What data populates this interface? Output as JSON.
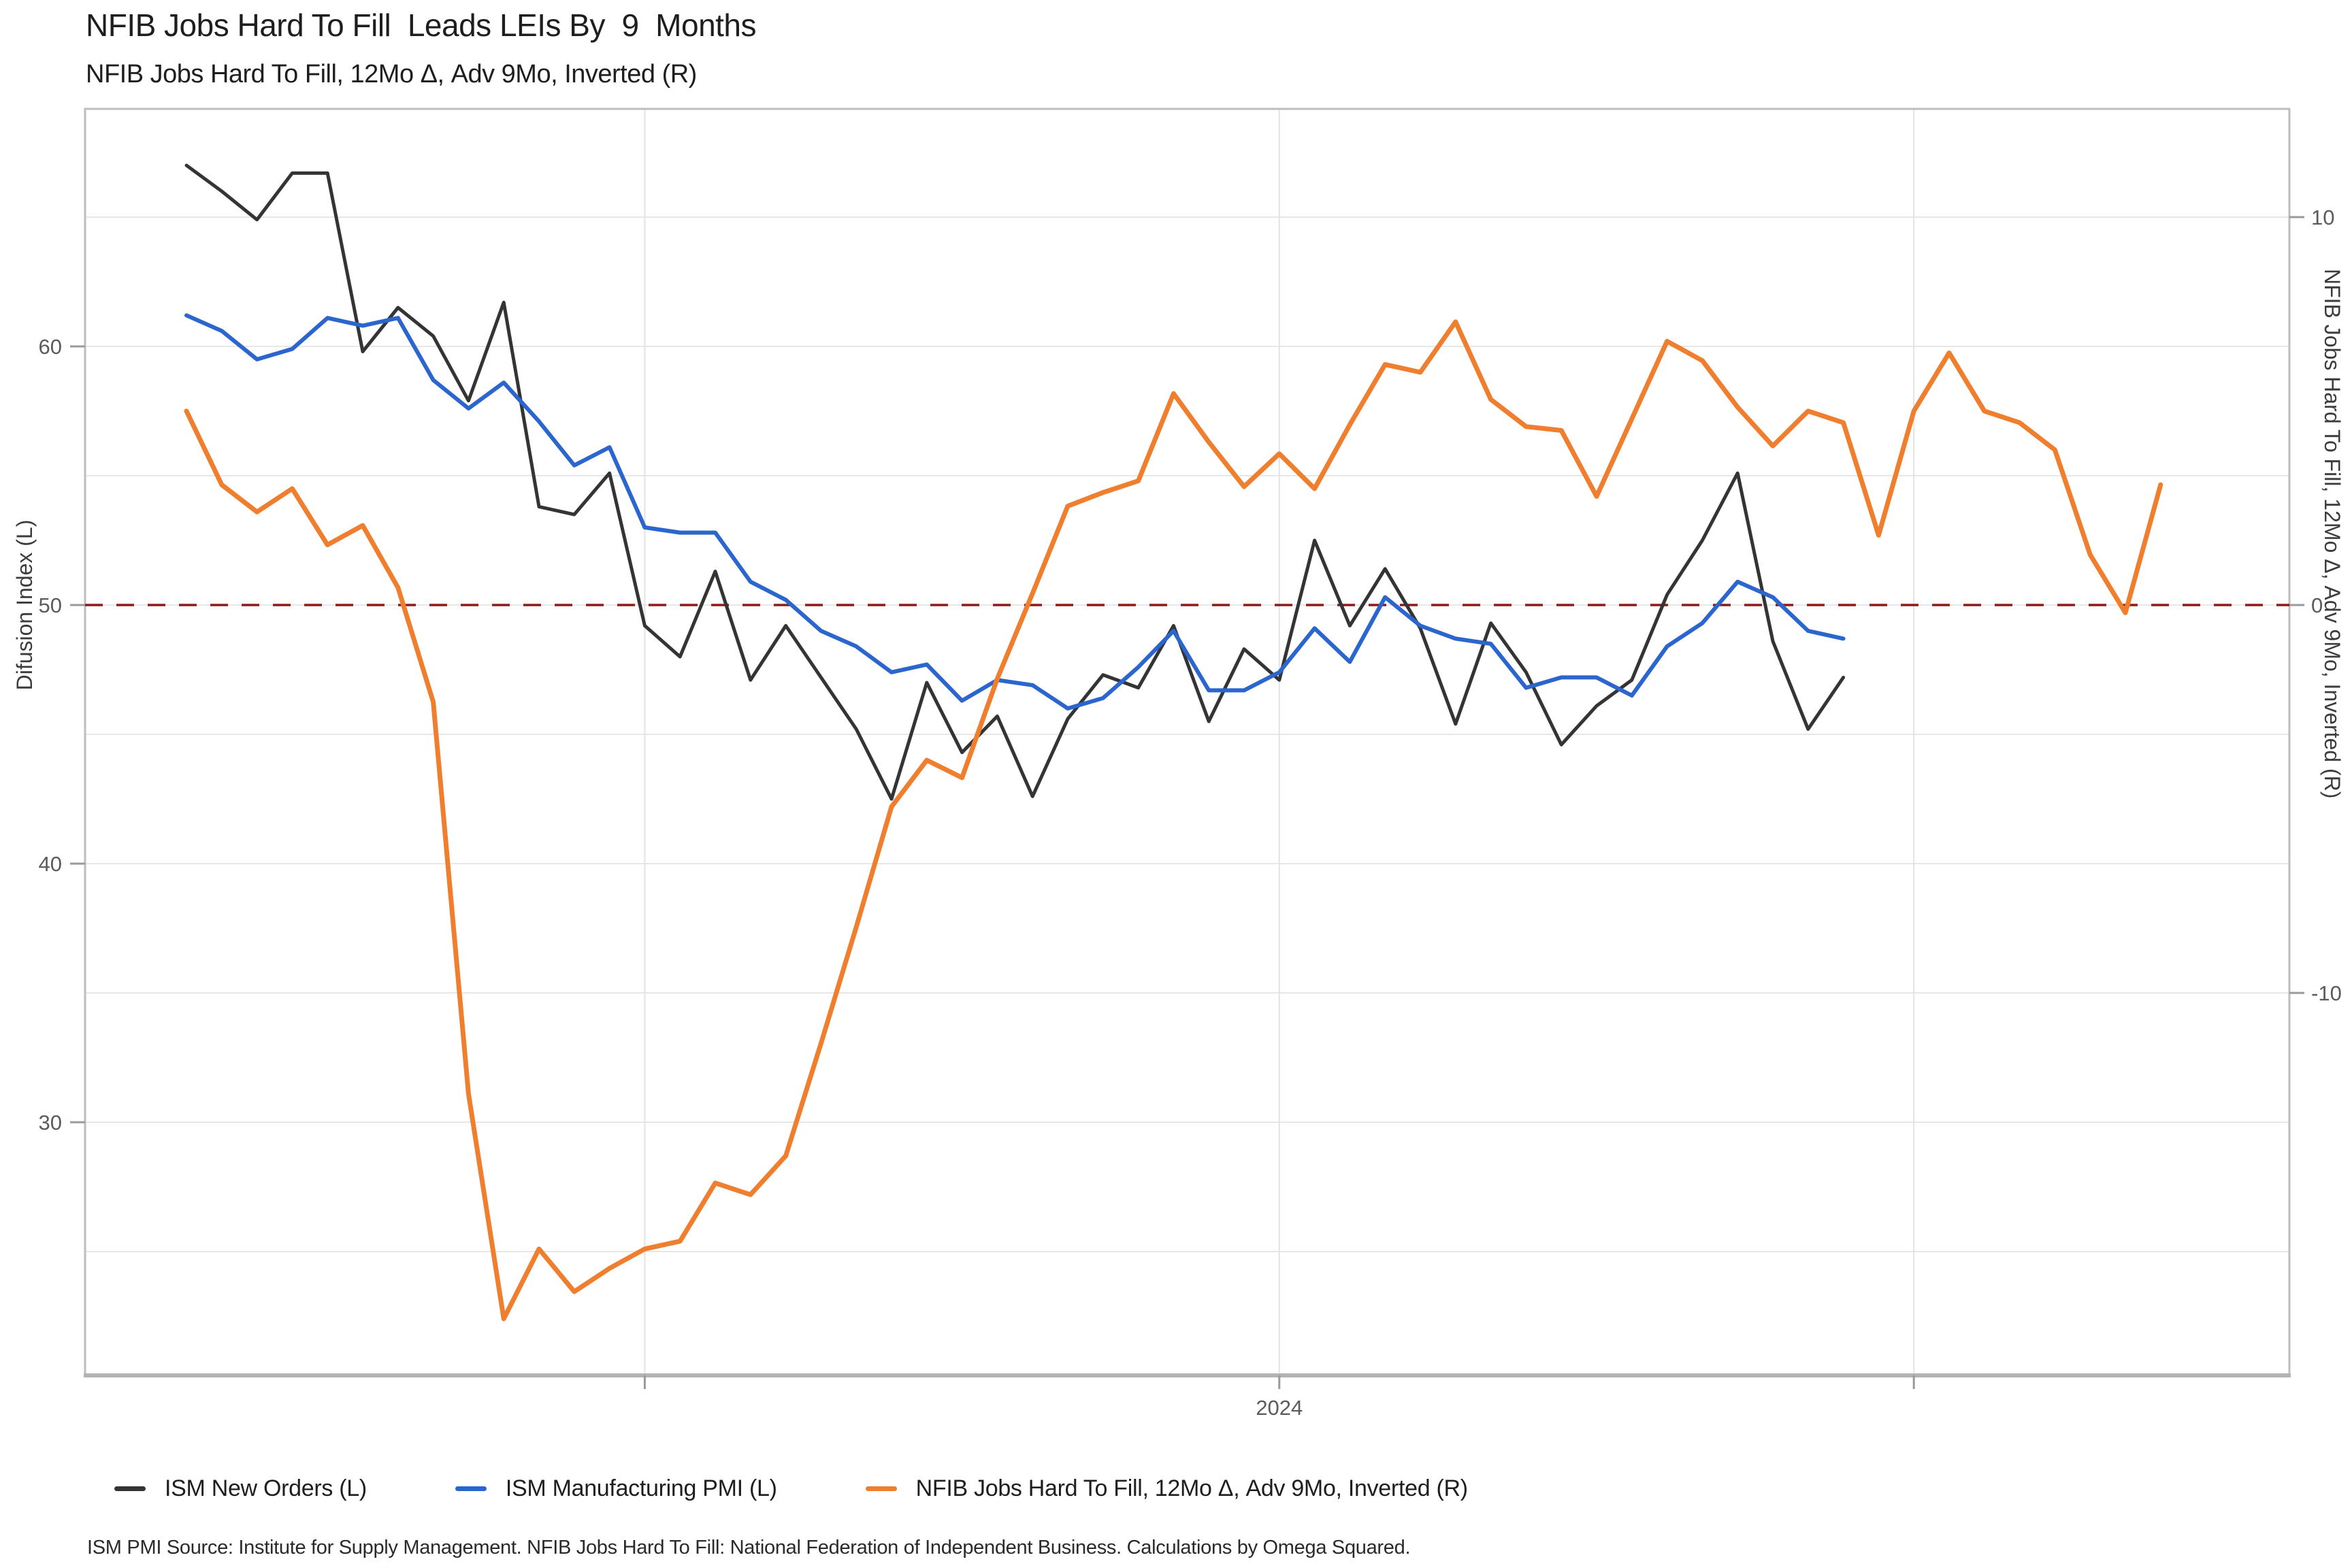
{
  "page": {
    "title": "NFIB Jobs Hard To Fill  Leads LEIs By  9  Months",
    "subtitle": "NFIB Jobs Hard To Fill, 12Mo Δ, Adv 9Mo, Inverted (R)",
    "footer": "ISM PMI Source: Institute for Supply Management. NFIB Jobs Hard To Fill: National Federation of Independent Business. Calculations by Omega Squared."
  },
  "chart_data": {
    "type": "line",
    "title": "NFIB Jobs Hard To Fill  Leads LEIs By  9  Months",
    "subtitle": "NFIB Jobs Hard To Fill, 12Mo Δ, Adv 9Mo, Inverted (R)",
    "grid": true,
    "legend_position": "bottom",
    "x_axis": {
      "start_month": "2021-05",
      "months_per_point": 1,
      "visible_tick_label": "2024",
      "tick_label_month_index": 31,
      "gridline_month_indices": [
        13,
        31,
        49
      ]
    },
    "left_axis": {
      "title": "Difusion Index (L)",
      "tick_labels": [
        60,
        50,
        40,
        30
      ],
      "gridline_values": [
        65,
        60,
        55,
        50,
        45,
        40,
        35,
        30,
        25
      ],
      "range": [
        20.2,
        69.2
      ]
    },
    "right_axis": {
      "title": "NFIB Jobs Hard To Fill, 12Mo Δ, Adv 9Mo, Inverted (R)",
      "tick_labels": [
        10,
        0,
        -10
      ],
      "range": [
        -18.7,
        12.8
      ]
    },
    "baseline": {
      "left_value": 50,
      "right_value": 0,
      "style": "dashed",
      "color": "#8E1A1A"
    },
    "series": [
      {
        "name": "ISM New Orders (L)",
        "axis": "left",
        "color": "#343434",
        "line_width": 5,
        "start_month": "2021-05",
        "values": [
          67.0,
          66.0,
          64.9,
          66.7,
          66.7,
          59.8,
          61.5,
          60.4,
          57.9,
          61.7,
          53.8,
          53.5,
          55.1,
          49.2,
          48.0,
          51.3,
          47.1,
          49.2,
          47.2,
          45.2,
          42.5,
          47.0,
          44.3,
          45.7,
          42.6,
          45.6,
          47.3,
          46.8,
          49.2,
          45.5,
          48.3,
          47.1,
          52.5,
          49.2,
          51.4,
          49.1,
          45.4,
          49.3,
          47.4,
          44.6,
          46.1,
          47.1,
          50.4,
          52.5,
          55.1,
          48.6,
          45.2,
          47.2
        ]
      },
      {
        "name": "ISM Manufacturing PMI (L)",
        "axis": "left",
        "color": "#2B66CE",
        "line_width": 6,
        "start_month": "2021-05",
        "values": [
          61.2,
          60.6,
          59.5,
          59.9,
          61.1,
          60.8,
          61.1,
          58.7,
          57.6,
          58.6,
          57.1,
          55.4,
          56.1,
          53.0,
          52.8,
          52.8,
          50.9,
          50.2,
          49.0,
          48.4,
          47.4,
          47.7,
          46.3,
          47.1,
          46.9,
          46.0,
          46.4,
          47.6,
          49.0,
          46.7,
          46.7,
          47.4,
          49.1,
          47.8,
          50.3,
          49.2,
          48.7,
          48.5,
          46.8,
          47.2,
          47.2,
          46.5,
          48.4,
          49.3,
          50.9,
          50.3,
          49.0,
          48.7
        ]
      },
      {
        "name": "NFIB Jobs Hard To Fill, 12Mo Δ, Adv 9Mo, Inverted (R)",
        "axis": "right",
        "color": "#EF7E2E",
        "line_width": 7,
        "start_month": "2021-05",
        "values": [
          5.0,
          3.1,
          2.4,
          3.0,
          1.55,
          2.05,
          0.45,
          -2.5,
          -12.6,
          -18.4,
          -16.6,
          -17.7,
          -17.1,
          -16.6,
          -16.4,
          -14.9,
          -15.2,
          -14.2,
          -11.3,
          -8.3,
          -5.2,
          -4.0,
          -4.45,
          -1.9,
          0.3,
          2.55,
          2.9,
          3.2,
          5.45,
          4.2,
          3.05,
          3.9,
          3.0,
          4.65,
          6.2,
          6.0,
          7.3,
          5.3,
          4.6,
          4.5,
          2.8,
          4.8,
          6.8,
          6.3,
          5.1,
          4.1,
          5.0,
          4.7,
          1.8,
          5.0,
          6.5,
          5.0,
          4.7,
          4.0,
          1.3,
          -0.2,
          3.1
        ]
      }
    ]
  }
}
